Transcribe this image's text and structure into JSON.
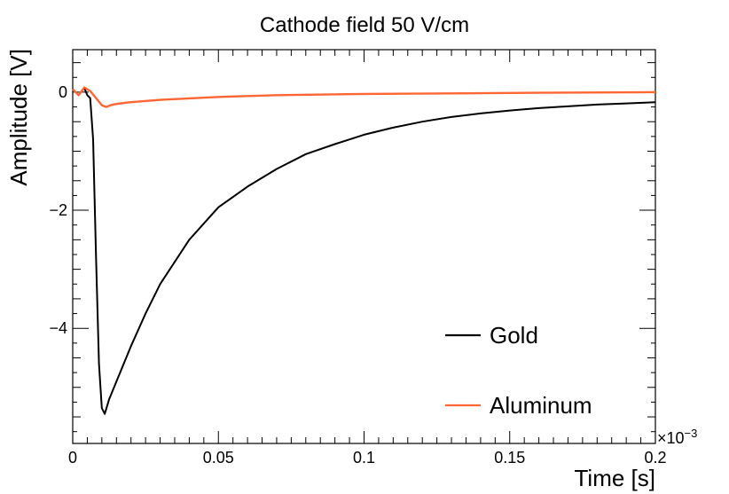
{
  "chart_data": {
    "type": "line",
    "title": "Cathode field 50 V/cm",
    "xlabel": "Time [s]",
    "ylabel": "Amplitude [V]",
    "x_multiplier": "×10",
    "x_multiplier_exp": "−3",
    "xlim": [
      0,
      0.2
    ],
    "ylim": [
      -5.95,
      0.72
    ],
    "x_ticks": [
      0,
      0.05,
      0.1,
      0.15,
      0.2
    ],
    "x_tick_labels": [
      "0",
      "0.05",
      "0.1",
      "0.15",
      "0.2"
    ],
    "y_ticks": [
      0,
      -2,
      -4
    ],
    "y_tick_labels": [
      "0",
      "−2",
      "−4"
    ],
    "grid": false,
    "legend_position": "bottom-right",
    "series": [
      {
        "name": "Gold",
        "color": "#000000",
        "x": [
          0,
          0.002,
          0.004,
          0.005,
          0.006,
          0.007,
          0.008,
          0.009,
          0.01,
          0.011,
          0.0125,
          0.015,
          0.02,
          0.025,
          0.03,
          0.04,
          0.05,
          0.06,
          0.07,
          0.08,
          0.09,
          0.1,
          0.11,
          0.12,
          0.13,
          0.14,
          0.15,
          0.16,
          0.17,
          0.18,
          0.19,
          0.2
        ],
        "values": [
          0.05,
          -0.05,
          0.07,
          -0.05,
          -0.1,
          -0.8,
          -2.8,
          -4.6,
          -5.35,
          -5.45,
          -5.2,
          -4.9,
          -4.3,
          -3.75,
          -3.25,
          -2.5,
          -1.95,
          -1.6,
          -1.3,
          -1.05,
          -0.88,
          -0.72,
          -0.6,
          -0.5,
          -0.42,
          -0.36,
          -0.31,
          -0.27,
          -0.24,
          -0.21,
          -0.19,
          -0.17
        ]
      },
      {
        "name": "Aluminum",
        "color": "#ff6633",
        "x": [
          0,
          0.002,
          0.004,
          0.006,
          0.008,
          0.01,
          0.0115,
          0.013,
          0.015,
          0.018,
          0.02,
          0.03,
          0.05,
          0.07,
          0.1,
          0.13,
          0.16,
          0.2
        ],
        "values": [
          0.05,
          -0.05,
          0.08,
          0.02,
          -0.1,
          -0.22,
          -0.25,
          -0.22,
          -0.2,
          -0.18,
          -0.17,
          -0.13,
          -0.08,
          -0.05,
          -0.03,
          -0.02,
          -0.01,
          0.0
        ]
      }
    ]
  }
}
